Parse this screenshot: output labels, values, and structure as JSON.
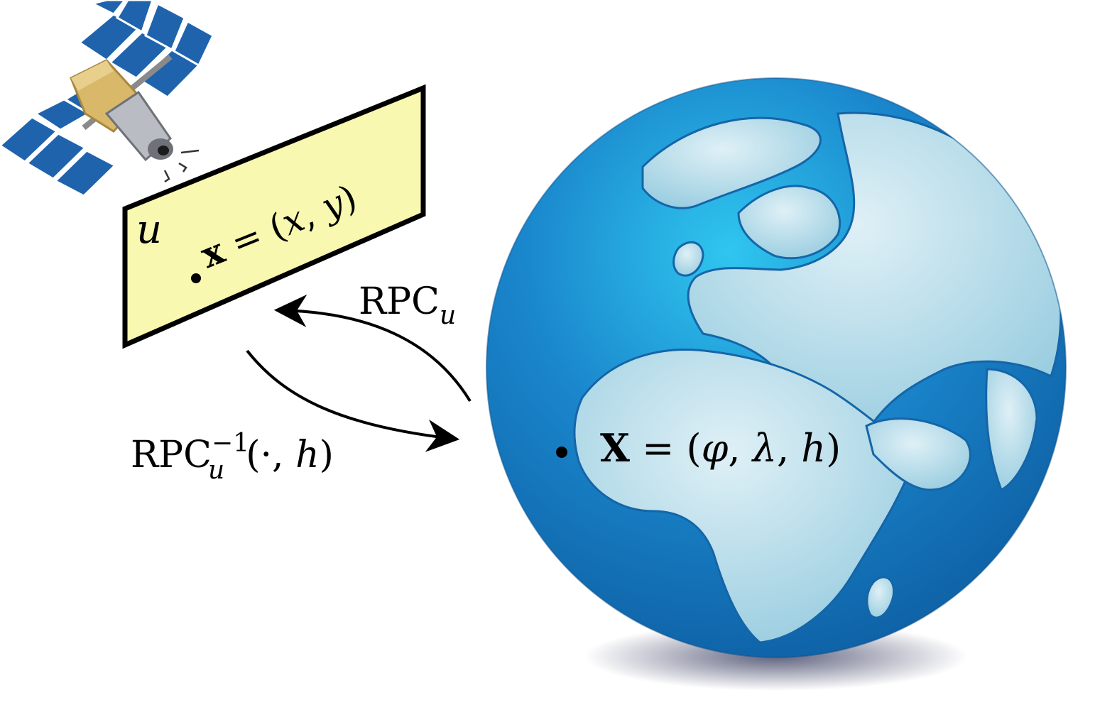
{
  "image_label": {
    "letter": "u"
  },
  "image_point": {
    "bold": "x",
    "eq": " = (",
    "a": "x",
    "comma": ", ",
    "b": "y",
    "close": ")"
  },
  "forward_arrow": {
    "base": "RPC",
    "sub": "u"
  },
  "inverse_arrow": {
    "base": "RPC",
    "sub": "u",
    "sup": "−1",
    "args_open": "(·, ",
    "arg": "h",
    "args_close": ")"
  },
  "ground_point": {
    "bold": "X",
    "eq": " = (",
    "phi": "φ",
    "c1": ", ",
    "lambda": "λ",
    "c2": ", ",
    "h": "h",
    "close": ")"
  },
  "colors": {
    "image_plane_fill": "#f8f8b0",
    "ocean": "#1a74bd",
    "land": "#b8dcea",
    "solar_panel": "#1f63ad",
    "satellite_body": "#d9b86a"
  }
}
